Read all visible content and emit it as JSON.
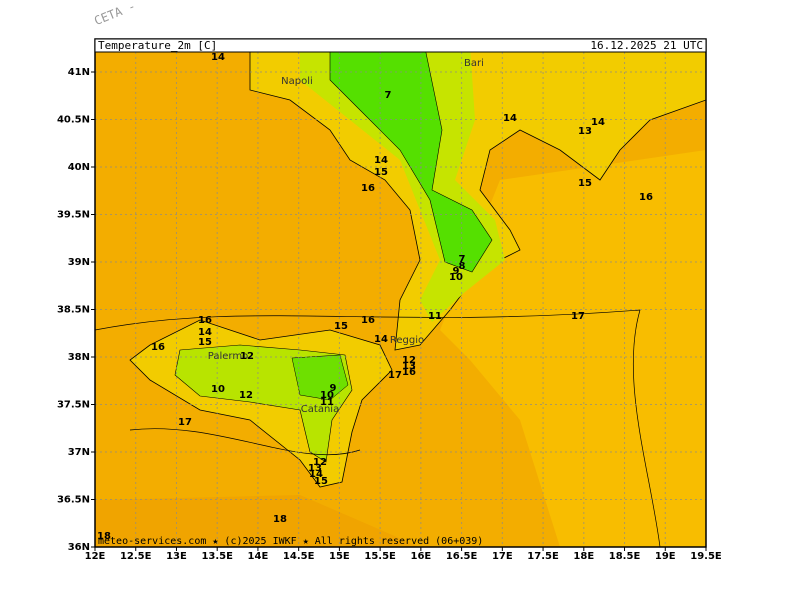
{
  "header": {
    "title": "Temperature_2m [C]",
    "valid": "16.12.2025 21 UTC"
  },
  "watermark": "CETA -",
  "axes": {
    "lat": [
      "36N",
      "36.5N",
      "37N",
      "37.5N",
      "38N",
      "38.5N",
      "39N",
      "39.5N",
      "40N",
      "40.5N",
      "41N"
    ],
    "lon": [
      "12E",
      "12.5E",
      "13E",
      "13.5E",
      "14E",
      "14.5E",
      "15E",
      "15.5E",
      "16E",
      "16.5E",
      "17E",
      "17.5E",
      "18E",
      "18.5E",
      "19E",
      "19.5E"
    ]
  },
  "places": [
    "Napoli",
    "Bari",
    "Palermo",
    "Catania",
    "Reggio"
  ],
  "contour_labels": [
    "14",
    "7",
    "14",
    "14",
    "13",
    "14",
    "15",
    "16",
    "15",
    "16",
    "7",
    "8",
    "9",
    "10",
    "11",
    "16",
    "14",
    "15",
    "16",
    "15",
    "17",
    "14",
    "16",
    "12",
    "12",
    "13",
    "17",
    "10",
    "12",
    "9",
    "10",
    "11",
    "17",
    "12",
    "13",
    "14",
    "15",
    "16",
    "18",
    "18"
  ],
  "footer": "meteo-services.com ★ (c)2025 IWKF ★ All rights reserved (06+039)"
}
